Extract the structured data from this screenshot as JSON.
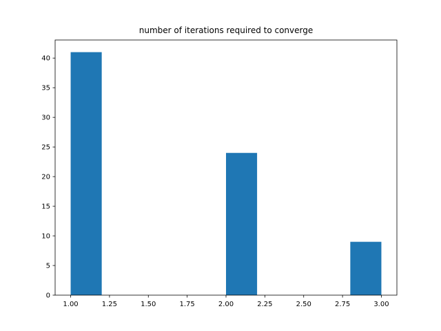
{
  "chart_data": {
    "type": "bar",
    "subtype": "histogram",
    "title": "number of iterations required to converge",
    "xlabel": "",
    "ylabel": "",
    "xlim": [
      0.9,
      3.1
    ],
    "ylim": [
      0,
      43.05
    ],
    "bins": [
      {
        "start": 1.0,
        "end": 1.2,
        "count": 41
      },
      {
        "start": 1.2,
        "end": 1.4,
        "count": 0
      },
      {
        "start": 1.4,
        "end": 1.6,
        "count": 0
      },
      {
        "start": 1.6,
        "end": 1.8,
        "count": 0
      },
      {
        "start": 1.8,
        "end": 2.0,
        "count": 0
      },
      {
        "start": 2.0,
        "end": 2.2,
        "count": 24
      },
      {
        "start": 2.2,
        "end": 2.4,
        "count": 0
      },
      {
        "start": 2.4,
        "end": 2.6,
        "count": 0
      },
      {
        "start": 2.6,
        "end": 2.8,
        "count": 0
      },
      {
        "start": 2.8,
        "end": 3.0,
        "count": 9
      }
    ],
    "xticks": [
      1.0,
      1.25,
      1.5,
      1.75,
      2.0,
      2.25,
      2.5,
      2.75,
      3.0
    ],
    "xtick_labels": [
      "1.00",
      "1.25",
      "1.50",
      "1.75",
      "2.00",
      "2.25",
      "2.50",
      "2.75",
      "3.00"
    ],
    "yticks": [
      0,
      5,
      10,
      15,
      20,
      25,
      30,
      35,
      40
    ],
    "ytick_labels": [
      "0",
      "5",
      "10",
      "15",
      "20",
      "25",
      "30",
      "35",
      "40"
    ],
    "grid": false,
    "legend": false,
    "bar_color": "#1f77b4"
  }
}
